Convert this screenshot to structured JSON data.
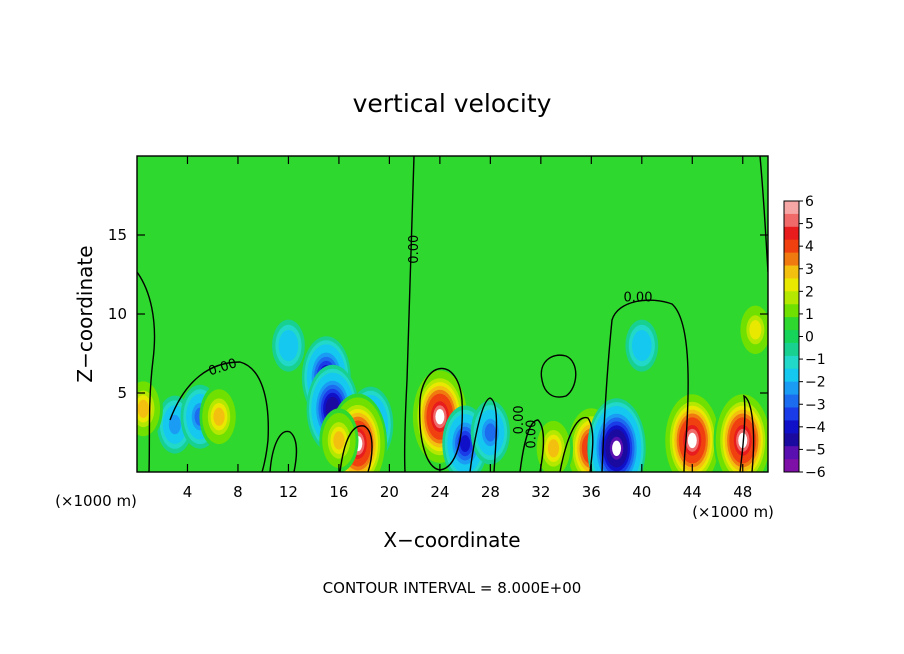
{
  "chart_data": {
    "type": "heatmap",
    "title": "vertical velocity",
    "xlabel": "X−coordinate",
    "ylabel": "Z−coordinate",
    "x_unit_left": "(×1000 m)",
    "x_unit_right": "(×1000 m)",
    "footer": "CONTOUR INTERVAL = 8.000E+00",
    "xlim": [
      0,
      50
    ],
    "ylim": [
      0,
      20
    ],
    "x_ticks": [
      4,
      8,
      12,
      16,
      20,
      24,
      28,
      32,
      36,
      40,
      44,
      48
    ],
    "x_tick_labels": [
      "4",
      "8",
      "12",
      "16",
      "20",
      "24",
      "28",
      "32",
      "36",
      "40",
      "44",
      "48"
    ],
    "y_ticks": [
      5,
      10,
      15
    ],
    "y_tick_labels": [
      "5",
      "10",
      "15"
    ],
    "contour_labels": [
      {
        "text": "0.00",
        "x": 6.8,
        "y": 6.6,
        "angle": -18
      },
      {
        "text": "0.00",
        "x": 22.0,
        "y": 14.1,
        "angle": -90
      },
      {
        "text": "0.00",
        "x": 30.3,
        "y": 3.3,
        "angle": -90
      },
      {
        "text": "0.00",
        "x": 31.3,
        "y": 2.4,
        "angle": -90
      },
      {
        "text": "0.00",
        "x": 39.7,
        "y": 11.0,
        "angle": 0
      }
    ],
    "colorbar": {
      "labels": [
        "6",
        "5",
        "4",
        "3",
        "2",
        "1",
        "0",
        "−1",
        "−2",
        "−3",
        "−4",
        "−5",
        "−6"
      ],
      "values": [
        6,
        5,
        4,
        3,
        2,
        1,
        0,
        -1,
        -2,
        -3,
        -4,
        -5,
        -6
      ],
      "colors": [
        "#f7a6a6",
        "#f06a6a",
        "#e81c1c",
        "#f04010",
        "#f07a10",
        "#f4c010",
        "#e8e800",
        "#b4e800",
        "#70e000",
        "#2ed82e",
        "#16d45a",
        "#18d090",
        "#22d8c8",
        "#14c8f0",
        "#1a9cf4",
        "#1c6cf0",
        "#1a3ce8",
        "#1010c8",
        "#1a0aa0",
        "#5a10b0",
        "#7e10a8"
      ]
    },
    "features": [
      {
        "x": 3.0,
        "z": 3.0,
        "w": -2.5
      },
      {
        "x": 5.0,
        "z": 3.5,
        "w": -3.0
      },
      {
        "x": 6.5,
        "z": 3.5,
        "w": 3.0
      },
      {
        "x": 0.5,
        "z": 4.0,
        "w": 3.0
      },
      {
        "x": 12.0,
        "z": 8.0,
        "w": -2.0
      },
      {
        "x": 15.0,
        "z": 6.0,
        "w": -4.5
      },
      {
        "x": 15.5,
        "z": 4.0,
        "w": -5.0
      },
      {
        "x": 18.5,
        "z": 3.0,
        "w": -4.0
      },
      {
        "x": 17.5,
        "z": 1.8,
        "w": 6.0
      },
      {
        "x": 16.0,
        "z": 2.0,
        "w": 3.0
      },
      {
        "x": 24.0,
        "z": 3.5,
        "w": 6.0
      },
      {
        "x": 26.0,
        "z": 1.8,
        "w": -4.0
      },
      {
        "x": 28.0,
        "z": 2.5,
        "w": -3.0
      },
      {
        "x": 36.0,
        "z": 1.5,
        "w": 5.0
      },
      {
        "x": 38.0,
        "z": 1.5,
        "w": -6.0
      },
      {
        "x": 40.0,
        "z": 8.0,
        "w": -2.0
      },
      {
        "x": 44.0,
        "z": 2.0,
        "w": 6.0
      },
      {
        "x": 48.0,
        "z": 2.0,
        "w": 6.0
      },
      {
        "x": 49.0,
        "z": 9.0,
        "w": 2.5
      },
      {
        "x": 33.0,
        "z": 1.5,
        "w": 3.0
      }
    ]
  }
}
